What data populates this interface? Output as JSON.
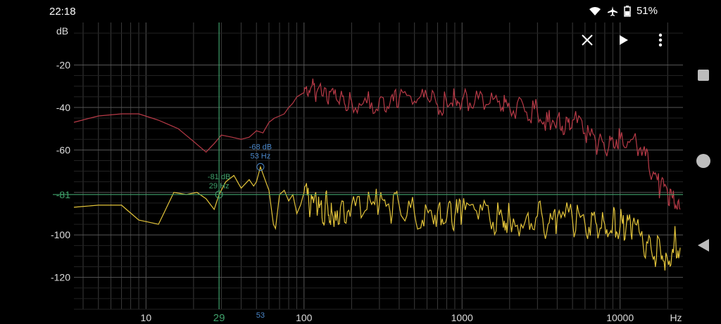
{
  "status": {
    "time": "22:18",
    "battery": "51%",
    "icons": [
      "wifi-icon",
      "airplane-icon",
      "battery-icon"
    ]
  },
  "toolbar": {
    "icons": [
      "close-icon",
      "play-icon",
      "more-vert-icon"
    ]
  },
  "navigation": {
    "icons": [
      "recents-square-icon",
      "home-circle-icon",
      "back-triangle-icon"
    ]
  },
  "chart_data": {
    "type": "line",
    "xscale": "log",
    "xlim": [
      3.5,
      25000
    ],
    "ylim": [
      -135,
      0
    ],
    "xunit": "Hz",
    "yunit": "dB",
    "x_ticks": [
      {
        "value": 10,
        "label": "10"
      },
      {
        "value": 100,
        "label": "100"
      },
      {
        "value": 1000,
        "label": "1000"
      },
      {
        "value": 10000,
        "label": "10000"
      }
    ],
    "y_ticks": [
      {
        "value": -20,
        "label": "-20"
      },
      {
        "value": -40,
        "label": "-40"
      },
      {
        "value": -60,
        "label": "-60"
      },
      {
        "value": -100,
        "label": "-100"
      },
      {
        "value": -120,
        "label": "-120"
      }
    ],
    "grid": true,
    "colors": {
      "red_series": "#b83a47",
      "yellow_series": "#e3c43a",
      "green_cursor": "#3fa06a",
      "blue_cursor": "#4a86c8",
      "grid": "#3a3a3a"
    },
    "series": [
      {
        "color_key": "red_series",
        "x": [
          3.5,
          5,
          7,
          9,
          12,
          16,
          20,
          24,
          27,
          30,
          35,
          40,
          45,
          50,
          55,
          60,
          65,
          70,
          75,
          80,
          85,
          90,
          100,
          110,
          120,
          140,
          160,
          180,
          200,
          250,
          300,
          350,
          400,
          500,
          600,
          700,
          800,
          900,
          1000,
          1200,
          1500,
          1800,
          2000,
          2500,
          3000,
          3500,
          4000,
          4500,
          5000,
          6000,
          7000,
          8000,
          9000,
          10000,
          12000,
          14000,
          16000,
          18000,
          20000,
          22000,
          24000
        ],
        "y": [
          -47,
          -44,
          -43,
          -43,
          -46,
          -50,
          -56,
          -61,
          -57,
          -53,
          -54,
          -55,
          -54,
          -51,
          -52,
          -47,
          -45,
          -44,
          -43,
          -40,
          -38,
          -35,
          -33,
          -31,
          -33,
          -37,
          -36,
          -38,
          -37,
          -38,
          -36,
          -38,
          -36,
          -37,
          -35,
          -39,
          -38,
          -36,
          -37,
          -38,
          -38,
          -40,
          -40,
          -42,
          -42,
          -47,
          -45,
          -50,
          -46,
          -52,
          -56,
          -60,
          -55,
          -55,
          -55,
          -60,
          -72,
          -78,
          -80,
          -85,
          -88
        ]
      },
      {
        "color_key": "yellow_series",
        "x": [
          3.5,
          5,
          7,
          9,
          12,
          15,
          18,
          21,
          24,
          27,
          29,
          32,
          36,
          40,
          45,
          48,
          50,
          53,
          56,
          60,
          64,
          66,
          70,
          75,
          80,
          85,
          90,
          95,
          100,
          110,
          120,
          130,
          140,
          150,
          170,
          200,
          250,
          300,
          350,
          400,
          500,
          600,
          700,
          800,
          900,
          1000,
          1200,
          1500,
          1800,
          2000,
          2500,
          3000,
          3500,
          4000,
          5000,
          6000,
          7000,
          8000,
          9000,
          10000,
          11000,
          12000,
          14000,
          16000,
          18000,
          20000,
          22000,
          24000
        ],
        "y": [
          -87,
          -86,
          -86,
          -93,
          -95,
          -80,
          -81,
          -80,
          -83,
          -88,
          -81,
          -75,
          -72,
          -78,
          -74,
          -77,
          -75,
          -68,
          -73,
          -79,
          -95,
          -97,
          -81,
          -79,
          -84,
          -81,
          -90,
          -86,
          -80,
          -88,
          -86,
          -92,
          -85,
          -89,
          -87,
          -86,
          -88,
          -85,
          -89,
          -86,
          -90,
          -88,
          -89,
          -92,
          -91,
          -90,
          -88,
          -93,
          -92,
          -91,
          -94,
          -91,
          -95,
          -92,
          -93,
          -95,
          -94,
          -95,
          -93,
          -96,
          -94,
          -95,
          -105,
          -110,
          -107,
          -112,
          -103,
          -106
        ]
      }
    ],
    "cursors": [
      {
        "color_key": "green_cursor",
        "freq": 29,
        "db": -81,
        "readout_db": "-81 dB",
        "readout_hz": "29 Hz",
        "axis_x_label": "29",
        "axis_y_label": "-81"
      },
      {
        "color_key": "blue_cursor",
        "freq": 53,
        "db": -68,
        "readout_db": "-68 dB",
        "readout_hz": "53 Hz",
        "axis_x_label": "53"
      }
    ]
  }
}
